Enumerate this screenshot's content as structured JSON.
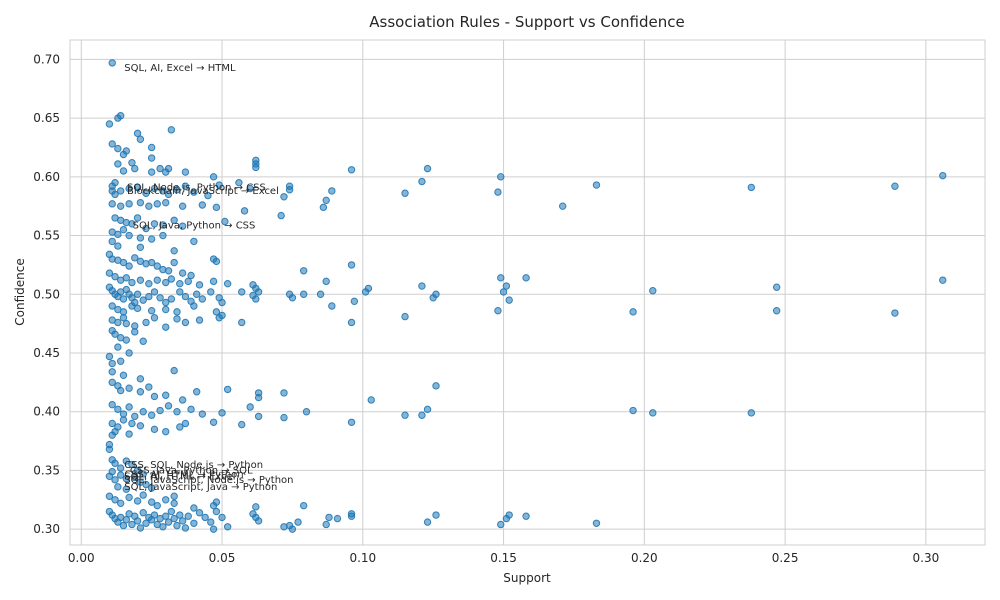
{
  "chart_data": {
    "type": "scatter",
    "title": "Association Rules - Support vs Confidence",
    "xlabel": "Support",
    "ylabel": "Confidence",
    "xlim": [
      -0.004,
      0.321
    ],
    "ylim": [
      0.2865,
      0.7165
    ],
    "xticks": [
      0.0,
      0.05,
      0.1,
      0.15,
      0.2,
      0.25,
      0.3
    ],
    "xtick_labels": [
      "0.00",
      "0.05",
      "0.10",
      "0.15",
      "0.20",
      "0.25",
      "0.30"
    ],
    "yticks": [
      0.3,
      0.35,
      0.4,
      0.45,
      0.5,
      0.55,
      0.6,
      0.65,
      0.7
    ],
    "ytick_labels": [
      "0.30",
      "0.35",
      "0.40",
      "0.45",
      "0.50",
      "0.55",
      "0.60",
      "0.65",
      "0.70"
    ],
    "grid": true,
    "color": "#1f77b4",
    "points": [
      [
        0.011,
        0.697
      ],
      [
        0.01,
        0.645
      ],
      [
        0.013,
        0.65
      ],
      [
        0.014,
        0.652
      ],
      [
        0.011,
        0.628
      ],
      [
        0.013,
        0.624
      ],
      [
        0.015,
        0.619
      ],
      [
        0.016,
        0.622
      ],
      [
        0.02,
        0.637
      ],
      [
        0.021,
        0.632
      ],
      [
        0.025,
        0.625
      ],
      [
        0.032,
        0.64
      ],
      [
        0.025,
        0.616
      ],
      [
        0.013,
        0.611
      ],
      [
        0.018,
        0.612
      ],
      [
        0.015,
        0.605
      ],
      [
        0.019,
        0.607
      ],
      [
        0.025,
        0.604
      ],
      [
        0.028,
        0.607
      ],
      [
        0.03,
        0.604
      ],
      [
        0.031,
        0.607
      ],
      [
        0.037,
        0.604
      ],
      [
        0.047,
        0.6
      ],
      [
        0.062,
        0.614
      ],
      [
        0.062,
        0.611
      ],
      [
        0.062,
        0.608
      ],
      [
        0.096,
        0.606
      ],
      [
        0.123,
        0.607
      ],
      [
        0.149,
        0.6
      ],
      [
        0.183,
        0.593
      ],
      [
        0.238,
        0.591
      ],
      [
        0.289,
        0.592
      ],
      [
        0.306,
        0.601
      ],
      [
        0.121,
        0.596
      ],
      [
        0.074,
        0.592
      ],
      [
        0.074,
        0.589
      ],
      [
        0.089,
        0.588
      ],
      [
        0.072,
        0.583
      ],
      [
        0.087,
        0.58
      ],
      [
        0.086,
        0.574
      ],
      [
        0.115,
        0.586
      ],
      [
        0.148,
        0.587
      ],
      [
        0.171,
        0.575
      ],
      [
        0.012,
        0.595
      ],
      [
        0.011,
        0.592
      ],
      [
        0.011,
        0.588
      ],
      [
        0.012,
        0.585
      ],
      [
        0.014,
        0.588
      ],
      [
        0.017,
        0.59
      ],
      [
        0.02,
        0.591
      ],
      [
        0.023,
        0.586
      ],
      [
        0.026,
        0.59
      ],
      [
        0.029,
        0.588
      ],
      [
        0.031,
        0.585
      ],
      [
        0.034,
        0.589
      ],
      [
        0.037,
        0.592
      ],
      [
        0.04,
        0.587
      ],
      [
        0.045,
        0.584
      ],
      [
        0.049,
        0.593
      ],
      [
        0.056,
        0.595
      ],
      [
        0.06,
        0.59
      ],
      [
        0.011,
        0.577
      ],
      [
        0.014,
        0.575
      ],
      [
        0.017,
        0.577
      ],
      [
        0.021,
        0.578
      ],
      [
        0.024,
        0.575
      ],
      [
        0.027,
        0.577
      ],
      [
        0.03,
        0.578
      ],
      [
        0.036,
        0.575
      ],
      [
        0.043,
        0.576
      ],
      [
        0.048,
        0.574
      ],
      [
        0.058,
        0.571
      ],
      [
        0.071,
        0.567
      ],
      [
        0.012,
        0.565
      ],
      [
        0.014,
        0.563
      ],
      [
        0.016,
        0.561
      ],
      [
        0.018,
        0.56
      ],
      [
        0.02,
        0.565
      ],
      [
        0.023,
        0.556
      ],
      [
        0.026,
        0.56
      ],
      [
        0.029,
        0.559
      ],
      [
        0.033,
        0.563
      ],
      [
        0.036,
        0.558
      ],
      [
        0.051,
        0.562
      ],
      [
        0.011,
        0.553
      ],
      [
        0.013,
        0.551
      ],
      [
        0.015,
        0.555
      ],
      [
        0.017,
        0.55
      ],
      [
        0.021,
        0.548
      ],
      [
        0.025,
        0.547
      ],
      [
        0.029,
        0.55
      ],
      [
        0.04,
        0.545
      ],
      [
        0.011,
        0.545
      ],
      [
        0.013,
        0.541
      ],
      [
        0.021,
        0.54
      ],
      [
        0.033,
        0.537
      ],
      [
        0.01,
        0.534
      ],
      [
        0.011,
        0.53
      ],
      [
        0.013,
        0.529
      ],
      [
        0.015,
        0.527
      ],
      [
        0.017,
        0.524
      ],
      [
        0.019,
        0.531
      ],
      [
        0.021,
        0.528
      ],
      [
        0.023,
        0.526
      ],
      [
        0.025,
        0.527
      ],
      [
        0.027,
        0.524
      ],
      [
        0.029,
        0.521
      ],
      [
        0.031,
        0.52
      ],
      [
        0.033,
        0.527
      ],
      [
        0.036,
        0.518
      ],
      [
        0.039,
        0.516
      ],
      [
        0.047,
        0.53
      ],
      [
        0.048,
        0.528
      ],
      [
        0.079,
        0.52
      ],
      [
        0.096,
        0.525
      ],
      [
        0.01,
        0.518
      ],
      [
        0.012,
        0.515
      ],
      [
        0.014,
        0.512
      ],
      [
        0.016,
        0.514
      ],
      [
        0.018,
        0.51
      ],
      [
        0.021,
        0.512
      ],
      [
        0.024,
        0.509
      ],
      [
        0.027,
        0.512
      ],
      [
        0.03,
        0.51
      ],
      [
        0.032,
        0.513
      ],
      [
        0.035,
        0.509
      ],
      [
        0.038,
        0.511
      ],
      [
        0.042,
        0.508
      ],
      [
        0.047,
        0.511
      ],
      [
        0.052,
        0.509
      ],
      [
        0.061,
        0.508
      ],
      [
        0.062,
        0.505
      ],
      [
        0.063,
        0.502
      ],
      [
        0.087,
        0.511
      ],
      [
        0.101,
        0.502
      ],
      [
        0.102,
        0.505
      ],
      [
        0.121,
        0.507
      ],
      [
        0.126,
        0.5
      ],
      [
        0.125,
        0.497
      ],
      [
        0.149,
        0.514
      ],
      [
        0.151,
        0.507
      ],
      [
        0.15,
        0.502
      ],
      [
        0.152,
        0.495
      ],
      [
        0.158,
        0.514
      ],
      [
        0.203,
        0.503
      ],
      [
        0.247,
        0.506
      ],
      [
        0.306,
        0.512
      ],
      [
        0.01,
        0.506
      ],
      [
        0.011,
        0.503
      ],
      [
        0.012,
        0.5
      ],
      [
        0.013,
        0.498
      ],
      [
        0.014,
        0.502
      ],
      [
        0.015,
        0.496
      ],
      [
        0.016,
        0.504
      ],
      [
        0.017,
        0.5
      ],
      [
        0.018,
        0.497
      ],
      [
        0.019,
        0.493
      ],
      [
        0.02,
        0.5
      ],
      [
        0.022,
        0.495
      ],
      [
        0.024,
        0.498
      ],
      [
        0.026,
        0.502
      ],
      [
        0.028,
        0.497
      ],
      [
        0.03,
        0.493
      ],
      [
        0.032,
        0.496
      ],
      [
        0.035,
        0.502
      ],
      [
        0.037,
        0.498
      ],
      [
        0.039,
        0.494
      ],
      [
        0.041,
        0.5
      ],
      [
        0.043,
        0.496
      ],
      [
        0.046,
        0.502
      ],
      [
        0.049,
        0.497
      ],
      [
        0.05,
        0.493
      ],
      [
        0.057,
        0.502
      ],
      [
        0.061,
        0.499
      ],
      [
        0.062,
        0.496
      ],
      [
        0.074,
        0.5
      ],
      [
        0.075,
        0.497
      ],
      [
        0.079,
        0.5
      ],
      [
        0.085,
        0.5
      ],
      [
        0.089,
        0.49
      ],
      [
        0.097,
        0.494
      ],
      [
        0.011,
        0.49
      ],
      [
        0.013,
        0.487
      ],
      [
        0.015,
        0.485
      ],
      [
        0.018,
        0.49
      ],
      [
        0.02,
        0.488
      ],
      [
        0.025,
        0.486
      ],
      [
        0.03,
        0.487
      ],
      [
        0.034,
        0.485
      ],
      [
        0.04,
        0.49
      ],
      [
        0.048,
        0.485
      ],
      [
        0.05,
        0.482
      ],
      [
        0.049,
        0.48
      ],
      [
        0.115,
        0.481
      ],
      [
        0.148,
        0.486
      ],
      [
        0.196,
        0.485
      ],
      [
        0.247,
        0.486
      ],
      [
        0.289,
        0.484
      ],
      [
        0.011,
        0.478
      ],
      [
        0.013,
        0.476
      ],
      [
        0.015,
        0.48
      ],
      [
        0.016,
        0.475
      ],
      [
        0.019,
        0.473
      ],
      [
        0.023,
        0.476
      ],
      [
        0.026,
        0.48
      ],
      [
        0.03,
        0.472
      ],
      [
        0.034,
        0.479
      ],
      [
        0.037,
        0.476
      ],
      [
        0.042,
        0.478
      ],
      [
        0.057,
        0.476
      ],
      [
        0.096,
        0.476
      ],
      [
        0.011,
        0.469
      ],
      [
        0.012,
        0.466
      ],
      [
        0.014,
        0.463
      ],
      [
        0.016,
        0.461
      ],
      [
        0.019,
        0.468
      ],
      [
        0.022,
        0.46
      ],
      [
        0.013,
        0.455
      ],
      [
        0.017,
        0.45
      ],
      [
        0.01,
        0.447
      ],
      [
        0.011,
        0.441
      ],
      [
        0.014,
        0.443
      ],
      [
        0.011,
        0.434
      ],
      [
        0.033,
        0.435
      ],
      [
        0.015,
        0.431
      ],
      [
        0.021,
        0.428
      ],
      [
        0.011,
        0.425
      ],
      [
        0.013,
        0.422
      ],
      [
        0.014,
        0.418
      ],
      [
        0.017,
        0.42
      ],
      [
        0.021,
        0.417
      ],
      [
        0.024,
        0.421
      ],
      [
        0.026,
        0.413
      ],
      [
        0.03,
        0.414
      ],
      [
        0.036,
        0.41
      ],
      [
        0.041,
        0.417
      ],
      [
        0.052,
        0.419
      ],
      [
        0.063,
        0.416
      ],
      [
        0.063,
        0.412
      ],
      [
        0.072,
        0.416
      ],
      [
        0.103,
        0.41
      ],
      [
        0.126,
        0.422
      ],
      [
        0.011,
        0.406
      ],
      [
        0.013,
        0.402
      ],
      [
        0.015,
        0.398
      ],
      [
        0.017,
        0.404
      ],
      [
        0.019,
        0.396
      ],
      [
        0.022,
        0.4
      ],
      [
        0.025,
        0.397
      ],
      [
        0.028,
        0.401
      ],
      [
        0.031,
        0.405
      ],
      [
        0.034,
        0.4
      ],
      [
        0.039,
        0.402
      ],
      [
        0.043,
        0.398
      ],
      [
        0.05,
        0.399
      ],
      [
        0.06,
        0.404
      ],
      [
        0.063,
        0.396
      ],
      [
        0.072,
        0.395
      ],
      [
        0.08,
        0.4
      ],
      [
        0.115,
        0.397
      ],
      [
        0.121,
        0.397
      ],
      [
        0.123,
        0.402
      ],
      [
        0.196,
        0.401
      ],
      [
        0.203,
        0.399
      ],
      [
        0.238,
        0.399
      ],
      [
        0.011,
        0.39
      ],
      [
        0.013,
        0.387
      ],
      [
        0.015,
        0.393
      ],
      [
        0.018,
        0.39
      ],
      [
        0.021,
        0.388
      ],
      [
        0.026,
        0.385
      ],
      [
        0.03,
        0.383
      ],
      [
        0.035,
        0.387
      ],
      [
        0.037,
        0.39
      ],
      [
        0.047,
        0.391
      ],
      [
        0.057,
        0.389
      ],
      [
        0.096,
        0.391
      ],
      [
        0.011,
        0.38
      ],
      [
        0.012,
        0.383
      ],
      [
        0.017,
        0.381
      ],
      [
        0.01,
        0.372
      ],
      [
        0.01,
        0.368
      ],
      [
        0.011,
        0.359
      ],
      [
        0.012,
        0.356
      ],
      [
        0.014,
        0.352
      ],
      [
        0.016,
        0.358
      ],
      [
        0.018,
        0.355
      ],
      [
        0.02,
        0.35
      ],
      [
        0.022,
        0.347
      ],
      [
        0.011,
        0.349
      ],
      [
        0.01,
        0.345
      ],
      [
        0.012,
        0.342
      ],
      [
        0.014,
        0.346
      ],
      [
        0.016,
        0.343
      ],
      [
        0.019,
        0.344
      ],
      [
        0.021,
        0.34
      ],
      [
        0.023,
        0.338
      ],
      [
        0.013,
        0.336
      ],
      [
        0.016,
        0.334
      ],
      [
        0.025,
        0.335
      ],
      [
        0.01,
        0.328
      ],
      [
        0.012,
        0.325
      ],
      [
        0.014,
        0.322
      ],
      [
        0.017,
        0.327
      ],
      [
        0.02,
        0.324
      ],
      [
        0.022,
        0.329
      ],
      [
        0.025,
        0.323
      ],
      [
        0.027,
        0.32
      ],
      [
        0.03,
        0.325
      ],
      [
        0.033,
        0.328
      ],
      [
        0.033,
        0.322
      ],
      [
        0.04,
        0.318
      ],
      [
        0.047,
        0.32
      ],
      [
        0.048,
        0.323
      ],
      [
        0.062,
        0.319
      ],
      [
        0.079,
        0.32
      ],
      [
        0.01,
        0.315
      ],
      [
        0.011,
        0.312
      ],
      [
        0.012,
        0.309
      ],
      [
        0.013,
        0.306
      ],
      [
        0.014,
        0.31
      ],
      [
        0.015,
        0.303
      ],
      [
        0.016,
        0.308
      ],
      [
        0.017,
        0.313
      ],
      [
        0.018,
        0.304
      ],
      [
        0.019,
        0.311
      ],
      [
        0.02,
        0.307
      ],
      [
        0.021,
        0.301
      ],
      [
        0.022,
        0.314
      ],
      [
        0.023,
        0.305
      ],
      [
        0.024,
        0.31
      ],
      [
        0.025,
        0.308
      ],
      [
        0.026,
        0.312
      ],
      [
        0.027,
        0.304
      ],
      [
        0.028,
        0.309
      ],
      [
        0.029,
        0.302
      ],
      [
        0.03,
        0.311
      ],
      [
        0.031,
        0.306
      ],
      [
        0.032,
        0.315
      ],
      [
        0.033,
        0.309
      ],
      [
        0.034,
        0.303
      ],
      [
        0.035,
        0.312
      ],
      [
        0.036,
        0.307
      ],
      [
        0.037,
        0.301
      ],
      [
        0.038,
        0.311
      ],
      [
        0.04,
        0.305
      ],
      [
        0.042,
        0.314
      ],
      [
        0.044,
        0.31
      ],
      [
        0.046,
        0.306
      ],
      [
        0.047,
        0.3
      ],
      [
        0.048,
        0.315
      ],
      [
        0.05,
        0.31
      ],
      [
        0.052,
        0.302
      ],
      [
        0.061,
        0.313
      ],
      [
        0.062,
        0.31
      ],
      [
        0.063,
        0.307
      ],
      [
        0.072,
        0.302
      ],
      [
        0.074,
        0.303
      ],
      [
        0.075,
        0.3
      ],
      [
        0.077,
        0.306
      ],
      [
        0.087,
        0.304
      ],
      [
        0.088,
        0.31
      ],
      [
        0.091,
        0.309
      ],
      [
        0.096,
        0.313
      ],
      [
        0.096,
        0.311
      ],
      [
        0.123,
        0.306
      ],
      [
        0.126,
        0.312
      ],
      [
        0.149,
        0.304
      ],
      [
        0.151,
        0.309
      ],
      [
        0.152,
        0.312
      ],
      [
        0.158,
        0.311
      ],
      [
        0.183,
        0.305
      ]
    ],
    "annotations": [
      {
        "text": "SQL, AI, Excel → HTML",
        "x": 0.011,
        "y": 0.697
      },
      {
        "text": "SQL, Node.js, Python → CSS",
        "x": 0.012,
        "y": 0.595
      },
      {
        "text": "Blockchain, JavaScript → Excel",
        "x": 0.012,
        "y": 0.592
      },
      {
        "text": "SQL, Java, Python → CSS",
        "x": 0.014,
        "y": 0.563
      },
      {
        "text": "CSS, SQL, Node.js → Python",
        "x": 0.011,
        "y": 0.359
      },
      {
        "text": "CSS, Java, Python → SQL",
        "x": 0.013,
        "y": 0.354
      },
      {
        "text": "CSS, AI, HTML → Python",
        "x": 0.011,
        "y": 0.351
      },
      {
        "text": "SQL, AI, HTML → Excel",
        "x": 0.011,
        "y": 0.349
      },
      {
        "text": "SQL, JavaScript, Node.js → Python",
        "x": 0.011,
        "y": 0.346
      },
      {
        "text": "SQL, JavaScript, Java → Python",
        "x": 0.011,
        "y": 0.34
      }
    ]
  }
}
